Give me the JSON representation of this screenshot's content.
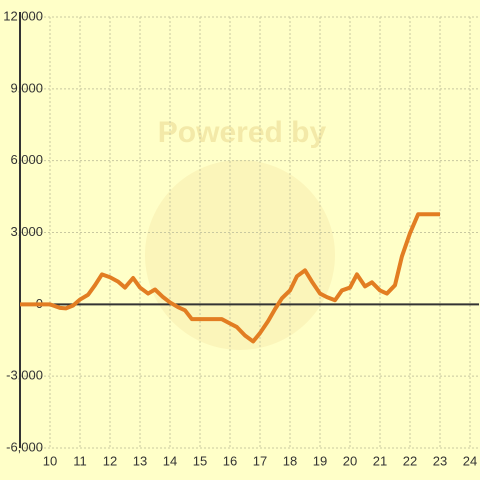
{
  "chart_data": {
    "type": "line",
    "watermark": "Powered by",
    "x": [
      9,
      10,
      10.33,
      10.53,
      10.77,
      11,
      11.27,
      11.5,
      11.73,
      12,
      12.27,
      12.5,
      12.77,
      13,
      13.27,
      13.5,
      13.77,
      14,
      14.27,
      14.5,
      14.73,
      15,
      15.5,
      15.73,
      16,
      16.23,
      16.5,
      16.77,
      17,
      17.27,
      17.5,
      17.73,
      18,
      18.23,
      18.5,
      18.73,
      19,
      19.23,
      19.5,
      19.73,
      20,
      20.23,
      20.5,
      20.73,
      21,
      21.23,
      21.5,
      21.73,
      22,
      22.27,
      23
    ],
    "series": [
      {
        "color": "#e27d22",
        "values": [
          0,
          0,
          -150,
          -170,
          -50,
          200,
          400,
          800,
          1250,
          1130,
          950,
          700,
          1100,
          700,
          450,
          620,
          300,
          80,
          -120,
          -250,
          -620,
          -620,
          -620,
          -620,
          -800,
          -950,
          -1300,
          -1550,
          -1200,
          -700,
          -200,
          250,
          580,
          1170,
          1420,
          950,
          450,
          300,
          170,
          580,
          700,
          1250,
          750,
          920,
          580,
          450,
          800,
          2000,
          2970,
          3760,
          3760
        ]
      }
    ],
    "xlim": [
      9,
      24.3
    ],
    "xticks": [
      10,
      11,
      12,
      13,
      14,
      15,
      16,
      17,
      18,
      19,
      20,
      21,
      22,
      23,
      24
    ],
    "ylim": [
      -6000,
      12000
    ],
    "yticks": [
      {
        "value": -6000,
        "label": "-6,000"
      },
      {
        "value": -3000,
        "label": "-3,000"
      },
      0,
      {
        "value": 3000,
        "label": "3,000"
      },
      {
        "value": 6000,
        "label": "6,000"
      },
      {
        "value": 9000,
        "label": "9,000"
      },
      {
        "value": 12000,
        "label": "12,000"
      }
    ],
    "grid": true
  }
}
